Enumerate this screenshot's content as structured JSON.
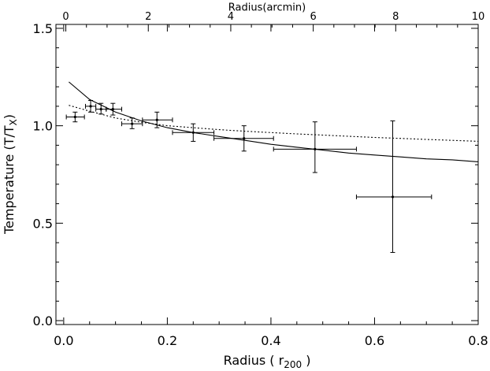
{
  "chart_data": {
    "type": "scatter",
    "xlabel": "Radius ( r",
    "xlabel_sub": "200",
    "xlabel_end": " )",
    "ylabel": "Temperature  (T/T",
    "ylabel_sub": "X",
    "ylabel_end": ")",
    "top_axis_label": "Radius(arcmin)",
    "xlim": [
      -0.015,
      0.8
    ],
    "ylim": [
      -0.02,
      1.52
    ],
    "top_xlim": [
      -0.24,
      10
    ],
    "x_ticks": [
      0.0,
      0.2,
      0.4,
      0.6,
      0.8
    ],
    "x_tick_labels": [
      "0.0",
      "0.2",
      "0.4",
      "0.6",
      "0.8"
    ],
    "y_ticks": [
      0.0,
      0.5,
      1.0,
      1.5
    ],
    "y_tick_labels": [
      "0.0",
      "0.5",
      "1.0",
      "1.5"
    ],
    "top_ticks": [
      0,
      2,
      4,
      6,
      8,
      10
    ],
    "top_tick_labels": [
      "0",
      "2",
      "4",
      "6",
      "8",
      "10"
    ],
    "grid": false,
    "legend": "none",
    "series": [
      {
        "style": "points-with-errorbars",
        "points": [
          {
            "x": 0.022,
            "y": 1.045,
            "xlo": 0.005,
            "xhi": 0.04,
            "ylo": 1.02,
            "yhi": 1.07
          },
          {
            "x": 0.052,
            "y": 1.1,
            "xlo": 0.042,
            "xhi": 0.062,
            "ylo": 1.07,
            "yhi": 1.13
          },
          {
            "x": 0.072,
            "y": 1.085,
            "xlo": 0.062,
            "xhi": 0.082,
            "ylo": 1.06,
            "yhi": 1.115
          },
          {
            "x": 0.095,
            "y": 1.085,
            "xlo": 0.082,
            "xhi": 0.112,
            "ylo": 1.055,
            "yhi": 1.115
          },
          {
            "x": 0.132,
            "y": 1.01,
            "xlo": 0.112,
            "xhi": 0.152,
            "ylo": 0.985,
            "yhi": 1.04
          },
          {
            "x": 0.18,
            "y": 1.03,
            "xlo": 0.152,
            "xhi": 0.21,
            "ylo": 0.99,
            "yhi": 1.07
          },
          {
            "x": 0.25,
            "y": 0.965,
            "xlo": 0.21,
            "xhi": 0.29,
            "ylo": 0.92,
            "yhi": 1.01
          },
          {
            "x": 0.348,
            "y": 0.935,
            "xlo": 0.29,
            "xhi": 0.405,
            "ylo": 0.87,
            "yhi": 1.0
          },
          {
            "x": 0.485,
            "y": 0.88,
            "xlo": 0.405,
            "xhi": 0.565,
            "ylo": 0.76,
            "yhi": 1.02
          },
          {
            "x": 0.635,
            "y": 0.635,
            "xlo": 0.565,
            "xhi": 0.71,
            "ylo": 0.35,
            "yhi": 1.025
          }
        ]
      },
      {
        "style": "solid-line",
        "x": [
          0.01,
          0.05,
          0.1,
          0.15,
          0.2,
          0.25,
          0.3,
          0.35,
          0.4,
          0.45,
          0.5,
          0.55,
          0.6,
          0.65,
          0.7,
          0.75,
          0.8
        ],
        "y": [
          1.225,
          1.135,
          1.07,
          1.025,
          0.99,
          0.965,
          0.945,
          0.925,
          0.905,
          0.89,
          0.875,
          0.86,
          0.85,
          0.84,
          0.83,
          0.825,
          0.815
        ]
      },
      {
        "style": "dotted-line",
        "x": [
          0.01,
          0.05,
          0.1,
          0.15,
          0.2,
          0.25,
          0.3,
          0.35,
          0.4,
          0.45,
          0.5,
          0.55,
          0.6,
          0.65,
          0.7,
          0.75,
          0.8
        ],
        "y": [
          1.105,
          1.075,
          1.04,
          1.018,
          1.0,
          0.99,
          0.98,
          0.972,
          0.965,
          0.958,
          0.952,
          0.946,
          0.94,
          0.935,
          0.93,
          0.925,
          0.92
        ]
      }
    ]
  }
}
